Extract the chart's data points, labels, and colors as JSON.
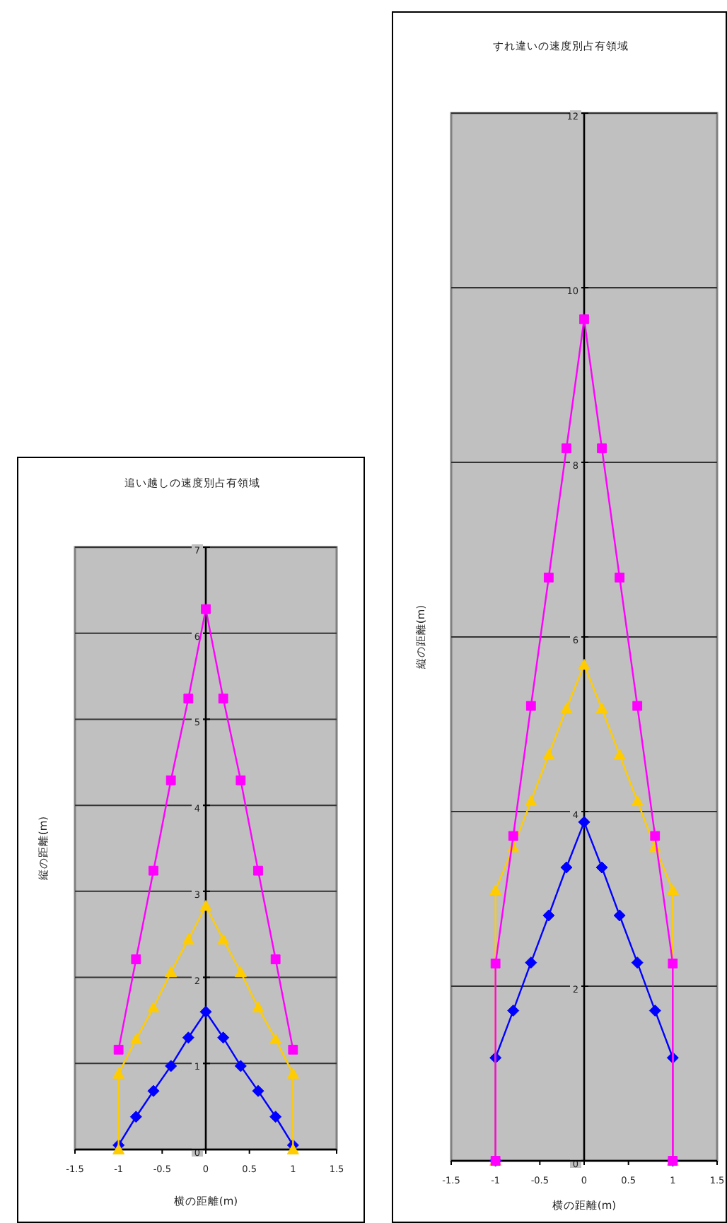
{
  "chart_data": [
    {
      "type": "line",
      "title": "追い越しの速度別占有領域",
      "xlabel": "横の距離(m)",
      "ylabel": "縦の距離(m)",
      "xlim": [
        -1.5,
        1.5
      ],
      "xticks": [
        -1.5,
        -1,
        -0.5,
        0,
        0.5,
        1,
        1.5
      ],
      "ylim": [
        0,
        7
      ],
      "yticks": [
        0,
        1,
        2,
        3,
        4,
        5,
        6,
        7
      ],
      "grid": "y",
      "line_style": "solid",
      "series": [
        {
          "color": "#0000ff",
          "marker": "diamond",
          "x": [
            -1,
            -0.8,
            -0.6,
            -0.4,
            -0.2,
            0,
            0.2,
            0.4,
            0.6,
            0.8,
            1
          ],
          "values": [
            0.05,
            0.38,
            0.68,
            0.97,
            1.3,
            1.6,
            1.3,
            0.97,
            0.68,
            0.38,
            0.05
          ]
        },
        {
          "color": "#ffcc00",
          "marker": "triangle",
          "x": [
            -1,
            -1,
            -0.8,
            -0.6,
            -0.4,
            -0.2,
            0,
            0.2,
            0.4,
            0.6,
            0.8,
            1,
            1
          ],
          "values": [
            0,
            0.88,
            1.28,
            1.65,
            2.06,
            2.44,
            2.83,
            2.44,
            2.06,
            1.65,
            1.28,
            0.88,
            0
          ]
        },
        {
          "color": "#ff00ff",
          "marker": "square",
          "x": [
            -1,
            -0.8,
            -0.6,
            -0.4,
            -0.2,
            0,
            0.2,
            0.4,
            0.6,
            0.8,
            1
          ],
          "values": [
            1.16,
            2.21,
            3.24,
            4.29,
            5.24,
            6.28,
            5.24,
            4.29,
            3.24,
            2.21,
            1.16
          ]
        }
      ]
    },
    {
      "type": "line",
      "title": "すれ違いの速度別占有領域",
      "xlabel": "横の距離(m)",
      "ylabel": "縦の距離(m)",
      "xlim": [
        -1.5,
        1.5
      ],
      "xticks": [
        -1.5,
        -1,
        -0.5,
        0,
        0.5,
        1,
        1.5
      ],
      "ylim": [
        0,
        12
      ],
      "yticks": [
        0,
        2,
        4,
        6,
        8,
        10,
        12
      ],
      "grid": "y",
      "line_style": "solid",
      "series": [
        {
          "color": "#0000ff",
          "marker": "diamond",
          "x": [
            -1,
            -1,
            -0.8,
            -0.6,
            -0.4,
            -0.2,
            0,
            0.2,
            0.4,
            0.6,
            0.8,
            1,
            1
          ],
          "values": [
            0,
            1.18,
            1.72,
            2.27,
            2.81,
            3.36,
            3.88,
            3.36,
            2.81,
            2.27,
            1.72,
            1.18,
            0
          ]
        },
        {
          "color": "#ffcc00",
          "marker": "triangle",
          "x": [
            -1,
            -1,
            -0.8,
            -0.6,
            -0.4,
            -0.2,
            0,
            0.2,
            0.4,
            0.6,
            0.8,
            1,
            1
          ],
          "values": [
            0,
            3.1,
            3.59,
            4.12,
            4.65,
            5.18,
            5.68,
            5.18,
            4.65,
            4.12,
            3.59,
            3.1,
            0
          ]
        },
        {
          "color": "#ff00ff",
          "marker": "square",
          "x": [
            -1,
            -1,
            -0.8,
            -0.6,
            -0.4,
            -0.2,
            0,
            0.2,
            0.4,
            0.6,
            0.8,
            1,
            1
          ],
          "values": [
            0,
            2.26,
            3.72,
            5.21,
            6.68,
            8.16,
            9.64,
            8.16,
            6.68,
            5.21,
            3.72,
            2.26,
            0
          ]
        }
      ]
    }
  ]
}
